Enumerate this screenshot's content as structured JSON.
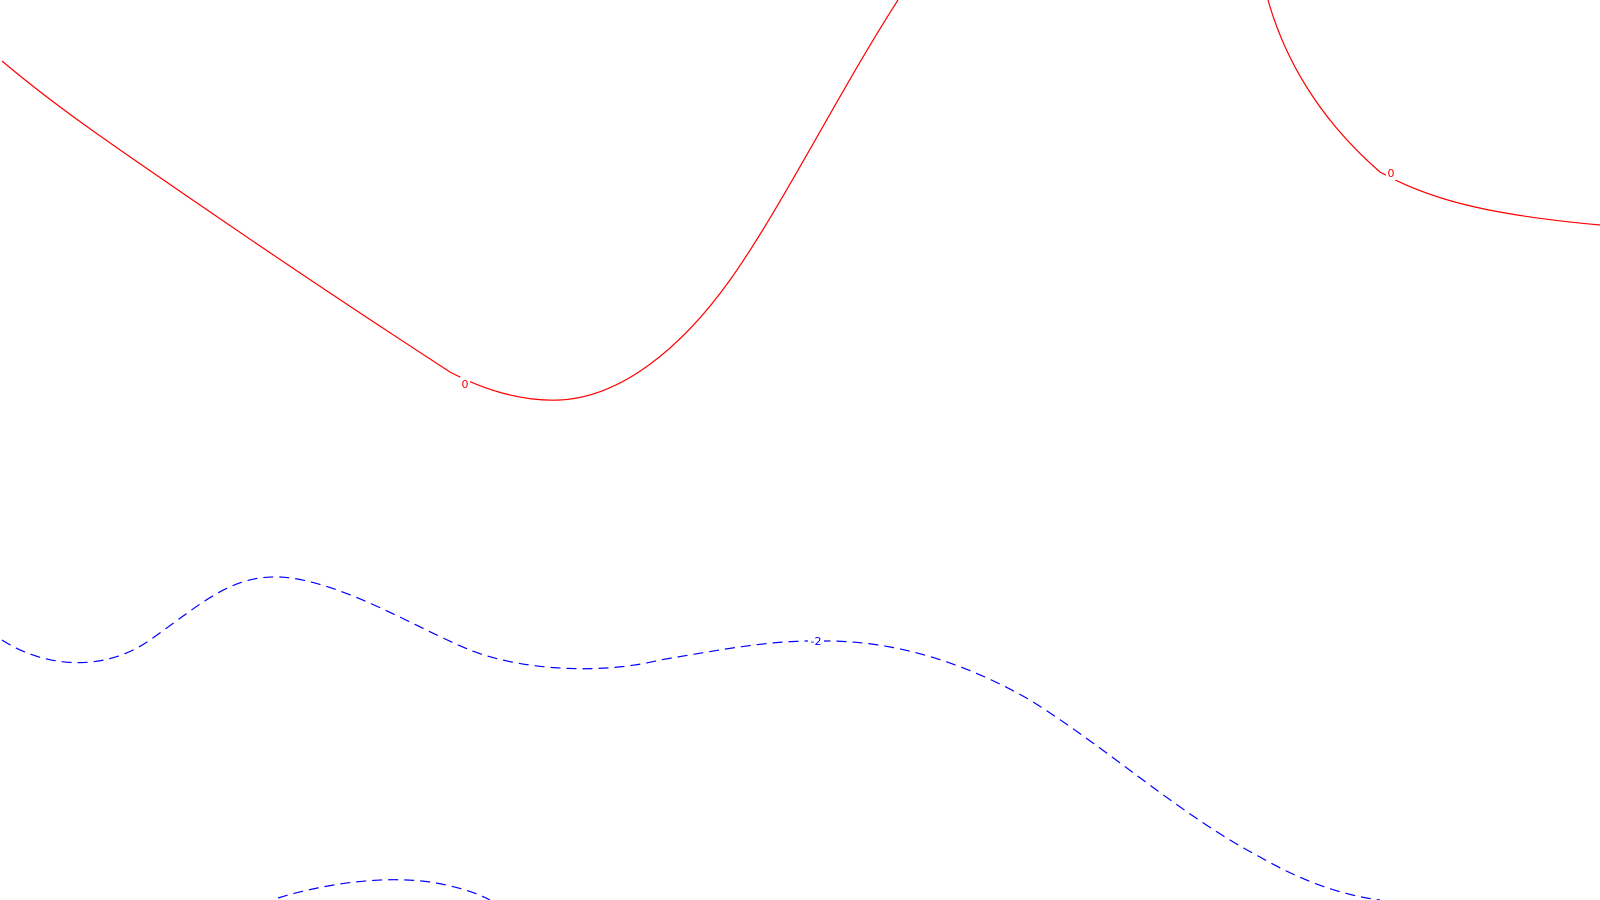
{
  "contours": [
    {
      "name": "contour-zero-left",
      "value": "0",
      "style": "solid",
      "color": "#ff0000"
    },
    {
      "name": "contour-zero-right",
      "value": "0",
      "style": "solid",
      "color": "#ff0000"
    },
    {
      "name": "contour-minus-two-middle",
      "value": "-2",
      "style": "dashed",
      "color": "#0000ff"
    },
    {
      "name": "contour-lower-bottom",
      "value": "",
      "style": "dashed",
      "color": "#0000ff"
    }
  ],
  "labels": {
    "zero_left": "0",
    "zero_right": "0",
    "minus_two": "-2"
  },
  "colors": {
    "background": "#ffffff",
    "positive_contour": "#ff0000",
    "negative_contour": "#0000ff"
  }
}
